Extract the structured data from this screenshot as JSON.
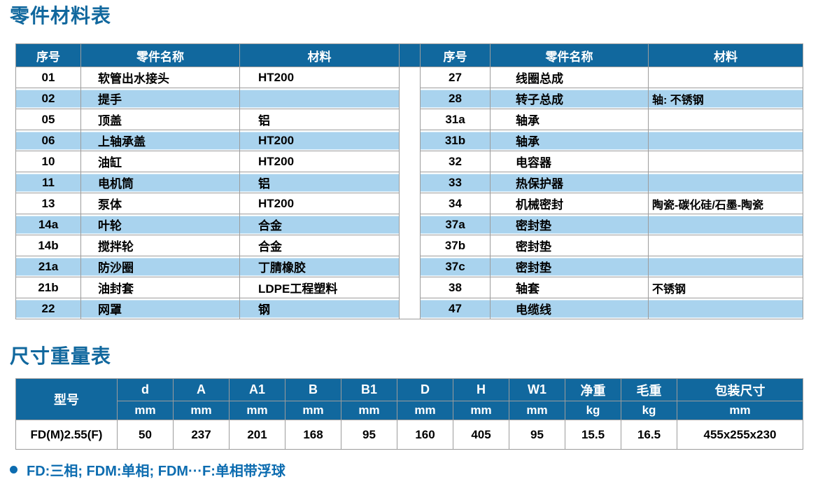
{
  "page": {
    "parts_title": "零件材料表",
    "dim_title": "尺寸重量表",
    "footnote": "FD:三相; FDM:单相; FDM···F:单相带浮球"
  },
  "colors": {
    "header_blue": "#11689e",
    "stripe_blue": "#a9d3ee",
    "title_blue": "#11689e",
    "note_blue": "#0c6cb0"
  },
  "parts_table": {
    "headers": {
      "no": "序号",
      "name": "零件名称",
      "material": "材料"
    },
    "left_rows": [
      {
        "no": "01",
        "name": "软管出水接头",
        "material": "HT200"
      },
      {
        "no": "02",
        "name": "提手",
        "material": ""
      },
      {
        "no": "05",
        "name": "顶盖",
        "material": "铝"
      },
      {
        "no": "06",
        "name": "上轴承盖",
        "material": "HT200"
      },
      {
        "no": "10",
        "name": "油缸",
        "material": "HT200"
      },
      {
        "no": "11",
        "name": "电机筒",
        "material": "铝"
      },
      {
        "no": "13",
        "name": "泵体",
        "material": "HT200"
      },
      {
        "no": "14a",
        "name": "叶轮",
        "material": "合金"
      },
      {
        "no": "14b",
        "name": "搅拌轮",
        "material": "合金"
      },
      {
        "no": "21a",
        "name": "防沙圈",
        "material": "丁腈橡胶"
      },
      {
        "no": "21b",
        "name": "油封套",
        "material": "LDPE工程塑料"
      },
      {
        "no": "22",
        "name": "网罩",
        "material": "钢"
      }
    ],
    "right_rows": [
      {
        "no": "27",
        "name": "线圈总成",
        "material": ""
      },
      {
        "no": "28",
        "name": "转子总成",
        "material": "轴: 不锈钢"
      },
      {
        "no": "31a",
        "name": "轴承",
        "material": ""
      },
      {
        "no": "31b",
        "name": "轴承",
        "material": ""
      },
      {
        "no": "32",
        "name": "电容器",
        "material": ""
      },
      {
        "no": "33",
        "name": "热保护器",
        "material": ""
      },
      {
        "no": "34",
        "name": "机械密封",
        "material": "陶瓷-碳化硅/石墨-陶瓷"
      },
      {
        "no": "37a",
        "name": "密封垫",
        "material": ""
      },
      {
        "no": "37b",
        "name": "密封垫",
        "material": ""
      },
      {
        "no": "37c",
        "name": "密封垫",
        "material": ""
      },
      {
        "no": "38",
        "name": "轴套",
        "material": "不锈钢"
      },
      {
        "no": "47",
        "name": "电缆线",
        "material": ""
      }
    ]
  },
  "dimension_table": {
    "model_header": "型号",
    "columns": [
      {
        "label": "d",
        "unit": "mm"
      },
      {
        "label": "A",
        "unit": "mm"
      },
      {
        "label": "A1",
        "unit": "mm"
      },
      {
        "label": "B",
        "unit": "mm"
      },
      {
        "label": "B1",
        "unit": "mm"
      },
      {
        "label": "D",
        "unit": "mm"
      },
      {
        "label": "H",
        "unit": "mm"
      },
      {
        "label": "W1",
        "unit": "mm"
      },
      {
        "label": "净重",
        "unit": "kg"
      },
      {
        "label": "毛重",
        "unit": "kg"
      },
      {
        "label": "包装尺寸",
        "unit": "mm"
      }
    ],
    "row": {
      "model": "FD(M)2.55(F)",
      "values": [
        "50",
        "237",
        "201",
        "168",
        "95",
        "160",
        "405",
        "95",
        "15.5",
        "16.5",
        "455x255x230"
      ]
    }
  }
}
